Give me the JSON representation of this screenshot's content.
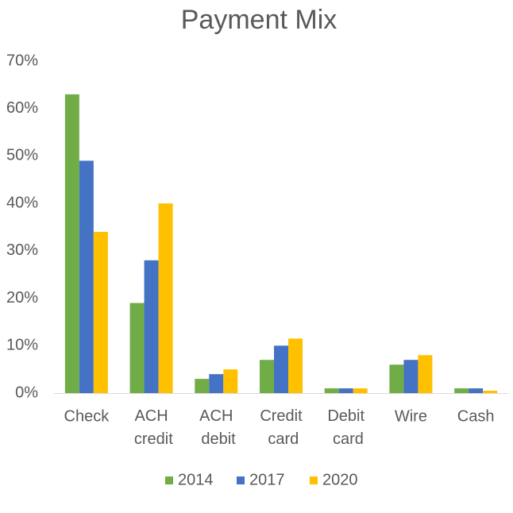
{
  "chart_data": {
    "type": "bar",
    "title": "Payment Mix",
    "categories": [
      "Check",
      "ACH credit",
      "ACH debit",
      "Credit card",
      "Debit card",
      "Wire",
      "Cash"
    ],
    "series": [
      {
        "name": "2014",
        "color": "#70ad47",
        "values": [
          63,
          19,
          3,
          7,
          1,
          6,
          1
        ]
      },
      {
        "name": "2017",
        "color": "#4472c4",
        "values": [
          49,
          28,
          4,
          10,
          1,
          7,
          1
        ]
      },
      {
        "name": "2020",
        "color": "#ffc000",
        "values": [
          34,
          40,
          5,
          11.5,
          1,
          8,
          0.5
        ]
      }
    ],
    "ylim": [
      0,
      70
    ],
    "yticks": [
      {
        "value": 0,
        "label": "0%"
      },
      {
        "value": 10,
        "label": "10%"
      },
      {
        "value": 20,
        "label": "20%"
      },
      {
        "value": 30,
        "label": "30%"
      },
      {
        "value": 40,
        "label": "40%"
      },
      {
        "value": 50,
        "label": "50%"
      },
      {
        "value": 60,
        "label": "60%"
      },
      {
        "value": 70,
        "label": "70%"
      }
    ],
    "grid": false,
    "legend": "bottom"
  }
}
